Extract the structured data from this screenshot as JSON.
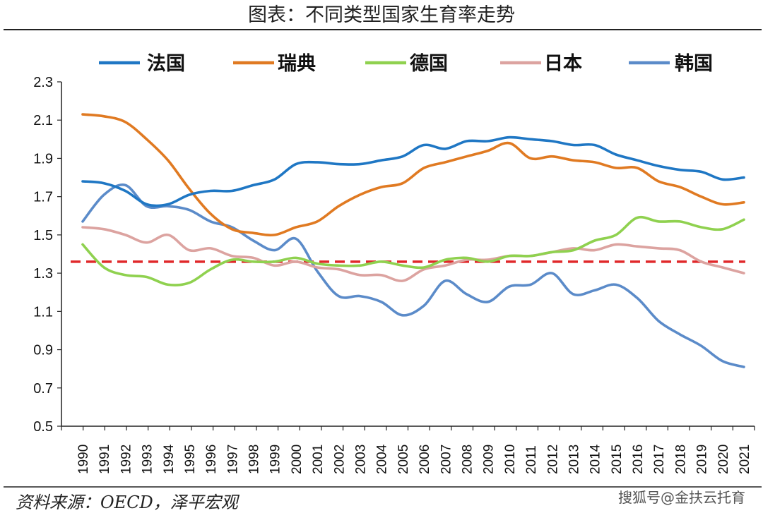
{
  "header": {
    "title": "图表：不同类型国家生育率走势"
  },
  "footer": {
    "source": "资料来源：OECD，泽平宏观",
    "watermark": "搜狐号@金扶云托育"
  },
  "colors": {
    "france": "#1f77c4",
    "sweden": "#e07a22",
    "germany": "#8fd14f",
    "japan": "#dca3a0",
    "korea": "#5b8bc9",
    "reference": "#e0282a"
  },
  "chart_data": {
    "type": "line",
    "title": "图表：不同类型国家生育率走势",
    "xlabel": "",
    "ylabel": "",
    "ylim": [
      0.5,
      2.3
    ],
    "yticks": [
      "0.5",
      "0.7",
      "0.9",
      "1.1",
      "1.3",
      "1.5",
      "1.7",
      "1.9",
      "2.1",
      "2.3"
    ],
    "x": [
      "1990",
      "1991",
      "1992",
      "1993",
      "1994",
      "1995",
      "1996",
      "1997",
      "1998",
      "1999",
      "2000",
      "2001",
      "2002",
      "2003",
      "2004",
      "2005",
      "2006",
      "2007",
      "2008",
      "2009",
      "2010",
      "2011",
      "2012",
      "2013",
      "2014",
      "2015",
      "2016",
      "2017",
      "2018",
      "2019",
      "2020",
      "2021"
    ],
    "legend_position": "top",
    "grid": false,
    "series": [
      {
        "name": "法国",
        "color": "#1f77c4",
        "values": [
          1.78,
          1.77,
          1.73,
          1.66,
          1.66,
          1.71,
          1.73,
          1.73,
          1.76,
          1.79,
          1.87,
          1.88,
          1.87,
          1.87,
          1.89,
          1.91,
          1.97,
          1.95,
          1.99,
          1.99,
          2.01,
          2.0,
          1.99,
          1.97,
          1.97,
          1.92,
          1.89,
          1.86,
          1.84,
          1.83,
          1.79,
          1.8
        ]
      },
      {
        "name": "瑞典",
        "color": "#e07a22",
        "values": [
          2.13,
          2.12,
          2.09,
          2.0,
          1.89,
          1.74,
          1.61,
          1.53,
          1.51,
          1.5,
          1.54,
          1.57,
          1.65,
          1.71,
          1.75,
          1.77,
          1.85,
          1.88,
          1.91,
          1.94,
          1.98,
          1.9,
          1.91,
          1.89,
          1.88,
          1.85,
          1.85,
          1.78,
          1.75,
          1.7,
          1.66,
          1.67
        ]
      },
      {
        "name": "德国",
        "color": "#8fd14f",
        "values": [
          1.45,
          1.33,
          1.29,
          1.28,
          1.24,
          1.25,
          1.32,
          1.37,
          1.36,
          1.36,
          1.38,
          1.35,
          1.34,
          1.34,
          1.36,
          1.34,
          1.33,
          1.37,
          1.38,
          1.36,
          1.39,
          1.39,
          1.41,
          1.42,
          1.47,
          1.5,
          1.59,
          1.57,
          1.57,
          1.54,
          1.53,
          1.58
        ]
      },
      {
        "name": "日本",
        "color": "#dca3a0",
        "values": [
          1.54,
          1.53,
          1.5,
          1.46,
          1.5,
          1.42,
          1.43,
          1.39,
          1.38,
          1.34,
          1.36,
          1.33,
          1.32,
          1.29,
          1.29,
          1.26,
          1.32,
          1.34,
          1.37,
          1.37,
          1.39,
          1.39,
          1.41,
          1.43,
          1.42,
          1.45,
          1.44,
          1.43,
          1.42,
          1.36,
          1.33,
          1.3
        ]
      },
      {
        "name": "韩国",
        "color": "#5b8bc9",
        "values": [
          1.57,
          1.71,
          1.76,
          1.65,
          1.65,
          1.63,
          1.57,
          1.54,
          1.47,
          1.42,
          1.48,
          1.31,
          1.18,
          1.18,
          1.15,
          1.08,
          1.13,
          1.26,
          1.19,
          1.15,
          1.23,
          1.24,
          1.3,
          1.19,
          1.21,
          1.24,
          1.17,
          1.05,
          0.98,
          0.92,
          0.84,
          0.81
        ]
      }
    ],
    "reference_line": {
      "value": 1.36,
      "style": "dashed",
      "color": "#e0282a"
    }
  }
}
